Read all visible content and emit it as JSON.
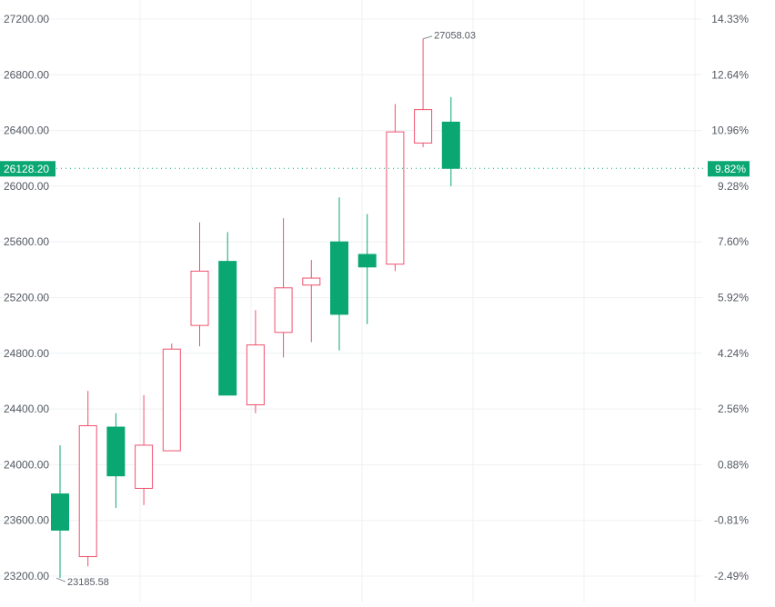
{
  "chart_data": {
    "type": "candlestick",
    "title": "",
    "xlabel": "",
    "ylabel": "",
    "ylim": [
      23150,
      27200
    ],
    "grid": true,
    "colors": {
      "up": "#f0506e",
      "down": "#0ba772",
      "grid": "#eef0f3",
      "current_price": "#0ba772"
    },
    "left_axis_ticks": [
      "27200.00",
      "26800.00",
      "26400.00",
      "26000.00",
      "25600.00",
      "25200.00",
      "24800.00",
      "24400.00",
      "24000.00",
      "23600.00",
      "23200.00"
    ],
    "right_axis_ticks": [
      "14.33%",
      "12.64%",
      "10.96%",
      "9.28%",
      "7.60%",
      "5.92%",
      "4.24%",
      "2.56%",
      "0.88%",
      "-0.81%",
      "-2.49%"
    ],
    "current_price": {
      "label": "26128.20",
      "percent": "9.82%",
      "value": 26128.2
    },
    "high_annotation": {
      "label": "27058.03",
      "value": 27058.03
    },
    "low_annotation": {
      "label": "23185.58",
      "value": 23185.58
    },
    "candles": [
      {
        "open": 23790,
        "high": 24140,
        "low": 23186,
        "close": 23530
      },
      {
        "open": 23340,
        "high": 24530,
        "low": 23270,
        "close": 24280
      },
      {
        "open": 24270,
        "high": 24370,
        "low": 23690,
        "close": 23920
      },
      {
        "open": 23830,
        "high": 24500,
        "low": 23710,
        "close": 24140
      },
      {
        "open": 24100,
        "high": 24870,
        "low": 24100,
        "close": 24830
      },
      {
        "open": 25000,
        "high": 25740,
        "low": 24850,
        "close": 25390
      },
      {
        "open": 25460,
        "high": 25670,
        "low": 24500,
        "close": 24500
      },
      {
        "open": 24430,
        "high": 25110,
        "low": 24370,
        "close": 24860
      },
      {
        "open": 24950,
        "high": 25770,
        "low": 24770,
        "close": 25270
      },
      {
        "open": 25290,
        "high": 25470,
        "low": 24880,
        "close": 25340
      },
      {
        "open": 25600,
        "high": 25920,
        "low": 24820,
        "close": 25080
      },
      {
        "open": 25510,
        "high": 25800,
        "low": 25010,
        "close": 25420
      },
      {
        "open": 25440,
        "high": 26590,
        "low": 25390,
        "close": 26390
      },
      {
        "open": 26310,
        "high": 27058.03,
        "low": 26280,
        "close": 26550
      },
      {
        "open": 26460,
        "high": 26640,
        "low": 26000,
        "close": 26128.2
      }
    ]
  }
}
